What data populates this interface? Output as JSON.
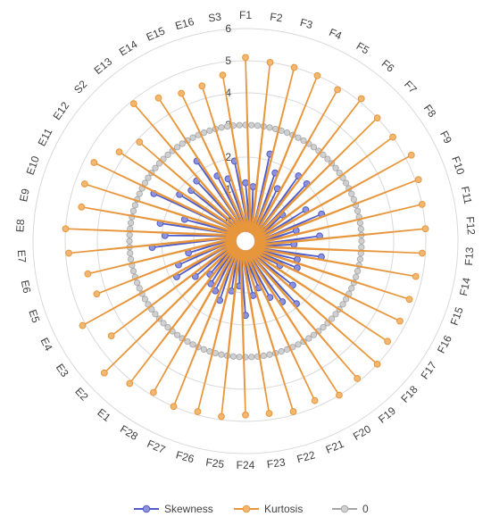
{
  "chart_data": {
    "type": "radar",
    "title": "",
    "categories": [
      "F1",
      "F2",
      "F3",
      "F4",
      "F5",
      "F6",
      "F7",
      "F8",
      "F9",
      "F10",
      "F11",
      "F12",
      "F13",
      "F14",
      "F15",
      "F16",
      "F17",
      "F18",
      "F19",
      "F20",
      "F21",
      "F22",
      "F23",
      "F24",
      "F25",
      "F26",
      "F27",
      "F28",
      "E1",
      "E2",
      "E3",
      "E4",
      "E5",
      "E6",
      "E7",
      "E8",
      "E9",
      "E10",
      "E11",
      "E12",
      "S2",
      "E13",
      "E14",
      "E15",
      "E16",
      "S3"
    ],
    "rlim": [
      0,
      6
    ],
    "ticks": [
      "0",
      "1",
      "2",
      "3",
      "4",
      "5",
      "6"
    ],
    "grid": true,
    "legend_position": "bottom",
    "series": [
      {
        "name": "Skewness",
        "color": "#4e5bc8",
        "values": [
          1.2,
          1.1,
          2.2,
          1.7,
          1.3,
          2.0,
          2.0,
          0.8,
          1.5,
          1.9,
          1.0,
          1.7,
          0.9,
          1.8,
          1.1,
          1.2,
          0.7,
          1.4,
          1.9,
          1.6,
          1.3,
          0.9,
          1.1,
          1.7,
          0.8,
          1.0,
          1.4,
          1.2,
          1.1,
          0.9,
          1.3,
          1.8,
          1.6,
          1.2,
          2.3,
          1.9,
          2.1,
          1.4,
          2.6,
          1.9,
          1.7,
          1.8,
          2.3,
          1.6,
          1.4,
          1.9
        ]
      },
      {
        "name": "Kurtosis",
        "color": "#e8963c",
        "values": [
          5.1,
          5.0,
          5.0,
          5.0,
          4.9,
          5.1,
          5.0,
          5.0,
          5.2,
          5.1,
          5.0,
          5.0,
          4.9,
          4.8,
          4.8,
          4.8,
          4.8,
          5.0,
          4.9,
          5.0,
          4.8,
          4.9,
          4.8,
          4.8,
          4.9,
          4.9,
          5.0,
          4.9,
          5.1,
          5.4,
          4.5,
          5.1,
          4.3,
          4.4,
          4.9,
          5.0,
          4.6,
          4.7,
          4.7,
          4.2,
          3.9,
          4.9,
          4.6,
          4.4,
          4.4,
          4.6
        ]
      },
      {
        "name": "0",
        "color": "#a5a5a5",
        "values": [
          0.0,
          0.0,
          0.0,
          0.0,
          0.0,
          0.0,
          0.0,
          0.0,
          0.0,
          0.0,
          0.0,
          0.0,
          0.0,
          0.0,
          0.0,
          0.0,
          0.0,
          0.0,
          0.0,
          0.0,
          0.0,
          0.0,
          0.0,
          0.0,
          0.0,
          0.0,
          0.0,
          0.0,
          0.0,
          0.0,
          0.0,
          0.0,
          0.0,
          0.0,
          0.0,
          0.0,
          0.0,
          0.0,
          0.0,
          0.0,
          0.0,
          0.0,
          0.0,
          0.0,
          0.0,
          0.0
        ]
      }
    ],
    "legend": [
      "Skewness",
      "Kurtosis",
      "0"
    ]
  }
}
